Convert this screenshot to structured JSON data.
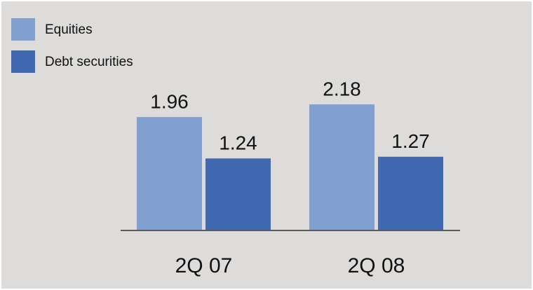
{
  "chart_data": {
    "type": "bar",
    "categories": [
      "2Q 07",
      "2Q 08"
    ],
    "series": [
      {
        "name": "Equities",
        "color": "#819fcf",
        "values": [
          1.96,
          2.18
        ]
      },
      {
        "name": "Debt securities",
        "color": "#4169b2",
        "values": [
          1.24,
          1.27
        ]
      }
    ],
    "legend": "upper-left"
  }
}
